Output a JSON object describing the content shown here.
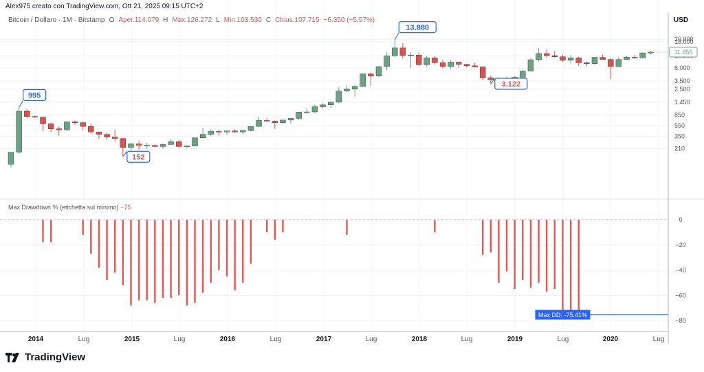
{
  "header": {
    "creator": "Alex975 creato con TradingView.com, Ott 21, 2025 09:15 UTC+2",
    "symbol": "Bitcoin / Dollaro · 1M · Bitstamp",
    "ohlc": [
      {
        "k": "O",
        "v": "Aper.114.079"
      },
      {
        "k": "H",
        "v": "Max.126.272"
      },
      {
        "k": "L",
        "v": "Min.103.530"
      },
      {
        "k": "C",
        "v": "Chius.107.715"
      }
    ],
    "change": "−6.350 (−5,57%)"
  },
  "currency": "USD",
  "indicator": {
    "label": "Max Drawdown % (etichetta sul minimo)",
    "value": "−75"
  },
  "max_dd_label": "Max DD: -75.41%",
  "brand": "TradingView",
  "colors": {
    "up": "#6aa384",
    "down": "#d9534f",
    "dd_bar": "#ef5350",
    "accent": "#2962ff",
    "last": "#6aa384"
  },
  "chart_data": [
    {
      "type": "candlestick",
      "log_scale": true,
      "price_ticks": [
        "20.000",
        "18.000",
        "10.000",
        "6.000",
        "3.500",
        "2.500",
        "1.450",
        "850",
        "550",
        "350",
        "210"
      ],
      "last_price_label": "11.655",
      "x_labels": [
        "2014",
        "Lug",
        "2015",
        "Lug",
        "2016",
        "Lug",
        "2017",
        "Lug",
        "2018",
        "Lug",
        "2019",
        "Lug",
        "2020",
        "Lug"
      ],
      "candles": [
        {
          "o": 110,
          "h": 130,
          "l": 95,
          "c": 180
        },
        {
          "o": 180,
          "h": 1170,
          "l": 170,
          "c": 1000
        },
        {
          "o": 1000,
          "h": 1100,
          "l": 750,
          "c": 800
        },
        {
          "o": 800,
          "h": 830,
          "l": 760,
          "c": 780
        },
        {
          "o": 780,
          "h": 800,
          "l": 440,
          "c": 590
        },
        {
          "o": 590,
          "h": 620,
          "l": 420,
          "c": 480
        },
        {
          "o": 480,
          "h": 530,
          "l": 360,
          "c": 460
        },
        {
          "o": 460,
          "h": 660,
          "l": 440,
          "c": 640
        },
        {
          "o": 640,
          "h": 680,
          "l": 560,
          "c": 620
        },
        {
          "o": 620,
          "h": 650,
          "l": 450,
          "c": 530
        },
        {
          "o": 530,
          "h": 590,
          "l": 390,
          "c": 420
        },
        {
          "o": 420,
          "h": 430,
          "l": 320,
          "c": 380
        },
        {
          "o": 380,
          "h": 410,
          "l": 300,
          "c": 340
        },
        {
          "o": 340,
          "h": 460,
          "l": 280,
          "c": 320
        },
        {
          "o": 320,
          "h": 330,
          "l": 150,
          "c": 220
        },
        {
          "o": 220,
          "h": 270,
          "l": 160,
          "c": 255
        },
        {
          "o": 255,
          "h": 290,
          "l": 200,
          "c": 240
        },
        {
          "o": 240,
          "h": 270,
          "l": 210,
          "c": 240
        },
        {
          "o": 240,
          "h": 250,
          "l": 220,
          "c": 230
        },
        {
          "o": 230,
          "h": 260,
          "l": 210,
          "c": 250
        },
        {
          "o": 250,
          "h": 310,
          "l": 250,
          "c": 280
        },
        {
          "o": 280,
          "h": 300,
          "l": 220,
          "c": 230
        },
        {
          "o": 230,
          "h": 240,
          "l": 210,
          "c": 235
        },
        {
          "o": 235,
          "h": 300,
          "l": 230,
          "c": 330
        },
        {
          "o": 330,
          "h": 500,
          "l": 320,
          "c": 380
        },
        {
          "o": 380,
          "h": 470,
          "l": 350,
          "c": 430
        },
        {
          "o": 430,
          "h": 460,
          "l": 360,
          "c": 420
        },
        {
          "o": 420,
          "h": 440,
          "l": 370,
          "c": 440
        },
        {
          "o": 440,
          "h": 480,
          "l": 400,
          "c": 420
        },
        {
          "o": 420,
          "h": 460,
          "l": 380,
          "c": 445
        },
        {
          "o": 445,
          "h": 530,
          "l": 430,
          "c": 530
        },
        {
          "o": 530,
          "h": 780,
          "l": 520,
          "c": 680
        },
        {
          "o": 680,
          "h": 760,
          "l": 640,
          "c": 660
        },
        {
          "o": 660,
          "h": 680,
          "l": 480,
          "c": 620
        },
        {
          "o": 620,
          "h": 700,
          "l": 580,
          "c": 690
        },
        {
          "o": 690,
          "h": 760,
          "l": 600,
          "c": 740
        },
        {
          "o": 740,
          "h": 960,
          "l": 700,
          "c": 960
        },
        {
          "o": 960,
          "h": 1150,
          "l": 880,
          "c": 970
        },
        {
          "o": 970,
          "h": 1300,
          "l": 920,
          "c": 1200
        },
        {
          "o": 1200,
          "h": 1400,
          "l": 1100,
          "c": 1300
        },
        {
          "o": 1300,
          "h": 1500,
          "l": 1150,
          "c": 1450
        },
        {
          "o": 1450,
          "h": 2700,
          "l": 1400,
          "c": 2300
        },
        {
          "o": 2300,
          "h": 2900,
          "l": 2200,
          "c": 2500
        },
        {
          "o": 2500,
          "h": 3000,
          "l": 1800,
          "c": 2800
        },
        {
          "o": 2800,
          "h": 4800,
          "l": 2700,
          "c": 4700
        },
        {
          "o": 4700,
          "h": 5000,
          "l": 2900,
          "c": 4300
        },
        {
          "o": 4300,
          "h": 6500,
          "l": 4100,
          "c": 6400
        },
        {
          "o": 6400,
          "h": 11500,
          "l": 5500,
          "c": 10000
        },
        {
          "o": 10000,
          "h": 19700,
          "l": 9500,
          "c": 13880
        },
        {
          "o": 13880,
          "h": 17000,
          "l": 9000,
          "c": 10200
        },
        {
          "o": 10200,
          "h": 11700,
          "l": 6000,
          "c": 10300
        },
        {
          "o": 10300,
          "h": 11500,
          "l": 6500,
          "c": 6900
        },
        {
          "o": 6900,
          "h": 9900,
          "l": 6400,
          "c": 9200
        },
        {
          "o": 9200,
          "h": 9900,
          "l": 7000,
          "c": 7500
        },
        {
          "o": 7500,
          "h": 8500,
          "l": 5800,
          "c": 6400
        },
        {
          "o": 6400,
          "h": 8500,
          "l": 5800,
          "c": 7700
        },
        {
          "o": 7700,
          "h": 7800,
          "l": 6100,
          "c": 7000
        },
        {
          "o": 7000,
          "h": 7200,
          "l": 6100,
          "c": 6600
        },
        {
          "o": 6600,
          "h": 7400,
          "l": 6200,
          "c": 6300
        },
        {
          "o": 6300,
          "h": 6500,
          "l": 3600,
          "c": 4000
        },
        {
          "o": 4000,
          "h": 4300,
          "l": 3122,
          "c": 3700
        },
        {
          "o": 3700,
          "h": 4100,
          "l": 3300,
          "c": 3450
        },
        {
          "o": 3450,
          "h": 4200,
          "l": 3400,
          "c": 3800
        },
        {
          "o": 3800,
          "h": 4300,
          "l": 3800,
          "c": 4100
        },
        {
          "o": 4100,
          "h": 5600,
          "l": 4100,
          "c": 5300
        },
        {
          "o": 5300,
          "h": 9000,
          "l": 5300,
          "c": 8500
        },
        {
          "o": 8500,
          "h": 13800,
          "l": 8000,
          "c": 11000
        },
        {
          "o": 11000,
          "h": 13000,
          "l": 9200,
          "c": 10100
        },
        {
          "o": 10100,
          "h": 12300,
          "l": 9300,
          "c": 9600
        },
        {
          "o": 9600,
          "h": 10500,
          "l": 7800,
          "c": 8300
        },
        {
          "o": 8300,
          "h": 10400,
          "l": 7300,
          "c": 9200
        },
        {
          "o": 9200,
          "h": 9700,
          "l": 6500,
          "c": 7500
        },
        {
          "o": 7500,
          "h": 7800,
          "l": 6500,
          "c": 7200
        },
        {
          "o": 7200,
          "h": 9500,
          "l": 6900,
          "c": 9400
        },
        {
          "o": 9400,
          "h": 10500,
          "l": 8600,
          "c": 8600
        },
        {
          "o": 8600,
          "h": 9200,
          "l": 3800,
          "c": 6400
        },
        {
          "o": 6400,
          "h": 9500,
          "l": 6200,
          "c": 8600
        },
        {
          "o": 8600,
          "h": 10000,
          "l": 8600,
          "c": 9450
        },
        {
          "o": 9450,
          "h": 10400,
          "l": 8900,
          "c": 9150
        },
        {
          "o": 9150,
          "h": 11500,
          "l": 9100,
          "c": 11300
        },
        {
          "o": 11300,
          "h": 12300,
          "l": 10500,
          "c": 11655
        }
      ],
      "callouts": [
        {
          "label": "995",
          "candle": 1,
          "dir": "up"
        },
        {
          "label": "152",
          "candle": 14,
          "dir": "down"
        },
        {
          "label": "13.880",
          "candle": 48,
          "dir": "up"
        },
        {
          "label": "3.122",
          "candle": 60,
          "dir": "down"
        }
      ]
    },
    {
      "type": "bar",
      "title": "Max Drawdown % (etichetta sul minimo)",
      "ylim": [
        -85,
        5
      ],
      "y_ticks": [
        "0",
        "−20",
        "−40",
        "−60",
        "−80"
      ],
      "values": [
        0,
        0,
        0,
        0,
        -18,
        -18,
        0,
        0,
        0,
        -12,
        -27,
        -38,
        -48,
        -42,
        -52,
        -68,
        -64,
        -64,
        -66,
        -62,
        -62,
        -60,
        -68,
        -66,
        -58,
        -50,
        -40,
        -45,
        -56,
        -50,
        -35,
        0,
        -10,
        -16,
        -10,
        0,
        0,
        0,
        0,
        0,
        0,
        0,
        -12,
        0,
        0,
        0,
        0,
        0,
        0,
        0,
        0,
        0,
        0,
        -10,
        0,
        0,
        0,
        0,
        0,
        -28,
        -26,
        -50,
        -41,
        -55,
        -48,
        -54,
        -50,
        -57,
        -55,
        -75,
        -73,
        -75,
        0,
        0,
        0,
        0,
        0,
        0,
        0,
        0,
        0,
        0
      ]
    }
  ]
}
